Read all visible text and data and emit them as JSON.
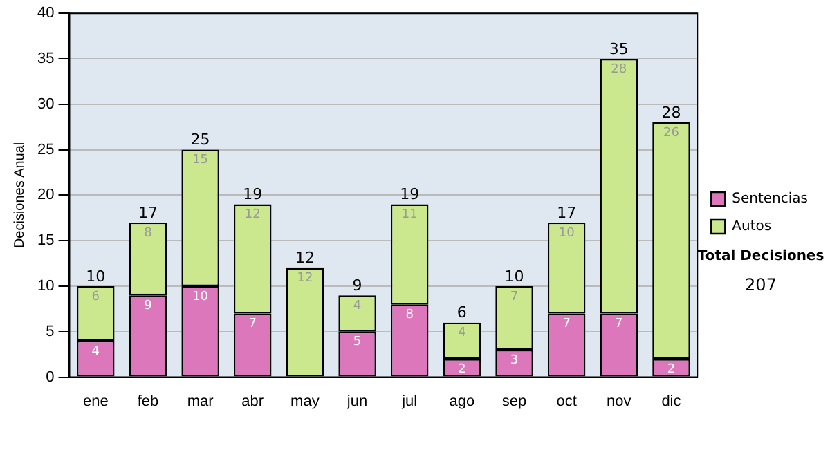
{
  "chart_data": {
    "type": "bar",
    "stacked": true,
    "ylabel": "Decisiones Anual",
    "categories": [
      "ene",
      "feb",
      "mar",
      "abr",
      "may",
      "jun",
      "jul",
      "ago",
      "sep",
      "oct",
      "nov",
      "dic"
    ],
    "series": [
      {
        "name": "Sentencias",
        "color": "#dd77bb",
        "values": [
          4,
          9,
          10,
          7,
          0,
          5,
          8,
          2,
          3,
          7,
          7,
          2
        ],
        "value_labels": [
          "4",
          "9",
          "10",
          "7",
          null,
          "5",
          "8",
          "2",
          "3",
          "7",
          "7",
          "2"
        ]
      },
      {
        "name": "Autos",
        "color": "#cce88f",
        "values": [
          6,
          8,
          15,
          12,
          12,
          4,
          11,
          4,
          7,
          10,
          28,
          26
        ],
        "value_labels": [
          "6",
          "8",
          "15",
          "12",
          "12",
          "4",
          "11",
          "4",
          "7",
          "10",
          "28",
          "26"
        ]
      }
    ],
    "totals": [
      "10",
      "17",
      "25",
      "19",
      "12",
      "9",
      "19",
      "6",
      "10",
      "17",
      "35",
      "28"
    ],
    "ylim": [
      0,
      40
    ],
    "yticks": [
      0,
      5,
      10,
      15,
      20,
      25,
      30,
      35,
      40
    ],
    "grid": "y",
    "legend": "right",
    "annotations": [
      "Total Decisiones",
      "207"
    ]
  }
}
